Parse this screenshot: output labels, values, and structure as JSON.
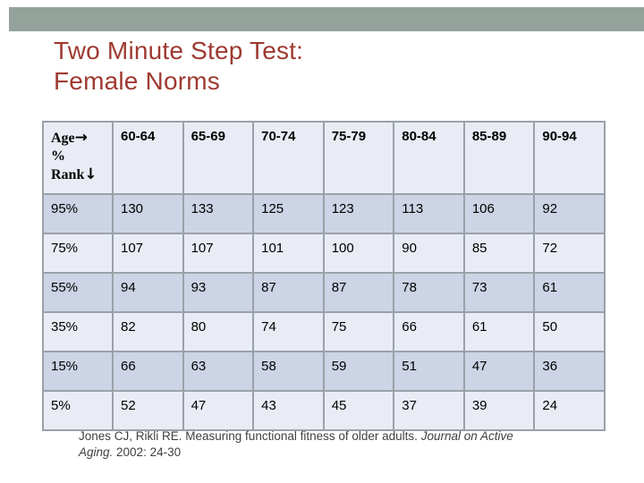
{
  "slide": {
    "title_line1": "Two Minute Step Test:",
    "title_line2": "Female Norms"
  },
  "table": {
    "corner": {
      "age_label": "Age",
      "arrow_right": "→",
      "percent_label": "%",
      "rank_label": "Rank",
      "arrow_down": "↓"
    },
    "columns": [
      "60-64",
      "65-69",
      "70-74",
      "75-79",
      "80-84",
      "85-89",
      "90-94"
    ],
    "rows": [
      {
        "label": "95%",
        "values": [
          "130",
          "133",
          "125",
          "123",
          "113",
          "106",
          "92"
        ]
      },
      {
        "label": "75%",
        "values": [
          "107",
          "107",
          "101",
          "100",
          "90",
          "85",
          "72"
        ]
      },
      {
        "label": "55%",
        "values": [
          "94",
          "93",
          "87",
          "87",
          "78",
          "73",
          "61"
        ]
      },
      {
        "label": "35%",
        "values": [
          "82",
          "80",
          "74",
          "75",
          "66",
          "61",
          "50"
        ]
      },
      {
        "label": "15%",
        "values": [
          "66",
          "63",
          "58",
          "59",
          "51",
          "47",
          "36"
        ]
      },
      {
        "label": "5%",
        "values": [
          "52",
          "47",
          "43",
          "45",
          "37",
          "39",
          "24"
        ]
      }
    ]
  },
  "citation": {
    "text_regular_1": "Jones CJ, Rikli RE. Measuring functional fitness of older adults. ",
    "text_italic": "Journal on Active Aging.",
    "text_regular_2": " 2002: 24-30"
  },
  "colors": {
    "top_bar": "#93a39b",
    "title": "#9e3a31",
    "header_bg": "#e9ecf4",
    "row_light": "#e9ecf4",
    "row_dark": "#ccd4e5",
    "border": "#9aa1a9",
    "citation_text": "#3f3f3f"
  }
}
